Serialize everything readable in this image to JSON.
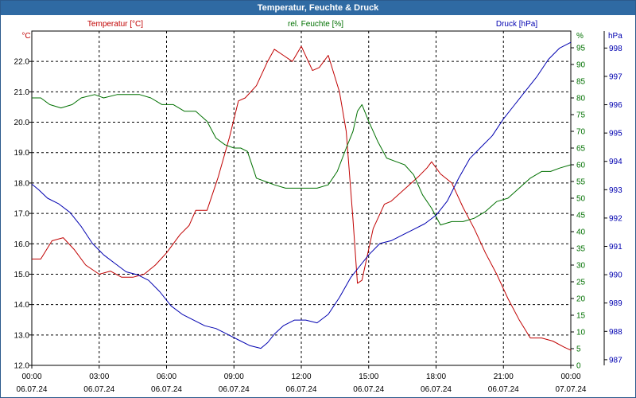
{
  "window": {
    "title": "Temperatur, Feuchte & Druck"
  },
  "chart_data": {
    "type": "line",
    "title": "Temperatur, Feuchte & Druck",
    "x_tick_times": [
      "00:00",
      "03:00",
      "06:00",
      "09:00",
      "12:00",
      "15:00",
      "18:00",
      "21:00",
      "00:00"
    ],
    "x_tick_dates": [
      "06.07.24",
      "06.07.24",
      "06.07.24",
      "06.07.24",
      "06.07.24",
      "06.07.24",
      "06.07.24",
      "06.07.24",
      "07.07.24"
    ],
    "x_hours_range": [
      0,
      24
    ],
    "axes": {
      "temp": {
        "unit": "°C",
        "ylim": [
          12.0,
          23.0
        ],
        "ticks": [
          "12.0",
          "13.0",
          "14.0",
          "15.0",
          "16.0",
          "17.0",
          "18.0",
          "19.0",
          "20.0",
          "21.0",
          "22.0"
        ]
      },
      "hum": {
        "unit": "%",
        "ylim": [
          0,
          100
        ],
        "ticks": [
          "0",
          "5",
          "10",
          "15",
          "20",
          "25",
          "30",
          "35",
          "40",
          "45",
          "50",
          "55",
          "60",
          "65",
          "70",
          "75",
          "80",
          "85",
          "90",
          "95"
        ]
      },
      "press": {
        "unit": "hPa",
        "ylim": [
          986.8,
          998.6
        ],
        "ticks": [
          "987",
          "988",
          "989",
          "990",
          "991",
          "992",
          "993",
          "994",
          "995",
          "996",
          "997",
          "998"
        ]
      }
    },
    "series": [
      {
        "name": "Temperatur [°C]",
        "axis": "temp",
        "color": "#c00000",
        "x": [
          0,
          0.4,
          0.9,
          1.4,
          1.9,
          2.4,
          3.0,
          3.5,
          4.0,
          4.5,
          5.0,
          5.5,
          6.0,
          6.6,
          7.0,
          7.3,
          7.8,
          8.3,
          8.8,
          9.2,
          9.5,
          10.0,
          10.5,
          10.8,
          11.2,
          11.6,
          12.0,
          12.5,
          12.8,
          13.2,
          13.7,
          14.0,
          14.3,
          14.5,
          14.7,
          15.2,
          15.7,
          16.0,
          16.6,
          17.2,
          17.6,
          17.8,
          18.2,
          18.7,
          19.2,
          19.7,
          20.2,
          20.7,
          21.2,
          21.7,
          22.2,
          22.7,
          23.2,
          23.7,
          24.0
        ],
        "y": [
          15.5,
          15.5,
          16.1,
          16.2,
          15.8,
          15.3,
          15.0,
          15.1,
          14.9,
          14.9,
          15.0,
          15.3,
          15.7,
          16.3,
          16.6,
          17.1,
          17.1,
          18.2,
          19.5,
          20.7,
          20.8,
          21.2,
          22.0,
          22.4,
          22.2,
          22.0,
          22.5,
          21.7,
          21.8,
          22.2,
          21.0,
          19.7,
          16.8,
          14.7,
          14.8,
          16.5,
          17.3,
          17.4,
          17.8,
          18.2,
          18.5,
          18.7,
          18.3,
          18.0,
          17.2,
          16.5,
          15.7,
          15.0,
          14.2,
          13.5,
          12.9,
          12.9,
          12.8,
          12.6,
          12.5
        ]
      },
      {
        "name": "rel. Feuchte [%]",
        "axis": "hum",
        "color": "#007000",
        "x": [
          0,
          0.4,
          0.8,
          1.3,
          1.8,
          2.2,
          2.8,
          3.2,
          3.8,
          4.2,
          4.8,
          5.3,
          5.8,
          6.3,
          6.8,
          7.3,
          7.8,
          8.2,
          8.6,
          9.0,
          9.3,
          9.6,
          10.0,
          10.4,
          10.8,
          11.3,
          11.8,
          12.2,
          12.7,
          13.2,
          13.6,
          14.0,
          14.3,
          14.5,
          14.7,
          15.0,
          15.4,
          15.8,
          16.2,
          16.6,
          17.0,
          17.4,
          17.8,
          18.2,
          18.7,
          19.2,
          19.7,
          20.2,
          20.7,
          21.2,
          21.7,
          22.2,
          22.7,
          23.1,
          23.5,
          24.0
        ],
        "y": [
          80,
          80,
          78,
          77,
          78,
          80,
          81,
          80,
          81,
          81,
          81,
          80,
          78,
          78,
          76,
          76,
          73,
          68,
          66,
          65,
          65,
          64,
          56,
          55,
          54,
          53,
          53,
          53,
          53,
          54,
          58,
          65,
          70,
          76,
          78,
          73,
          67,
          62,
          61,
          60,
          57,
          51,
          47,
          42,
          43,
          43,
          44,
          46,
          49,
          50,
          53,
          56,
          58,
          58,
          59,
          60
        ]
      },
      {
        "name": "Druck [hPa]",
        "axis": "press",
        "color": "#0000b0",
        "x": [
          0,
          0.3,
          0.7,
          1.2,
          1.7,
          2.2,
          2.7,
          3.2,
          3.7,
          4.2,
          4.7,
          5.2,
          5.7,
          6.2,
          6.7,
          7.2,
          7.7,
          8.2,
          8.7,
          9.2,
          9.7,
          10.2,
          10.5,
          10.8,
          11.2,
          11.7,
          12.2,
          12.7,
          13.2,
          13.7,
          14.2,
          14.5,
          15.0,
          15.5,
          16.0,
          16.5,
          17.0,
          17.5,
          18.0,
          18.5,
          19.0,
          19.5,
          20.0,
          20.5,
          21.0,
          21.5,
          22.0,
          22.5,
          23.0,
          23.5,
          24.0
        ],
        "y": [
          993.2,
          993.0,
          992.7,
          992.5,
          992.2,
          991.7,
          991.1,
          990.7,
          990.4,
          990.1,
          990.0,
          989.8,
          989.4,
          988.9,
          988.6,
          988.4,
          988.2,
          988.1,
          987.9,
          987.7,
          987.5,
          987.4,
          987.6,
          987.9,
          988.2,
          988.4,
          988.4,
          988.3,
          988.6,
          989.2,
          989.9,
          990.2,
          990.7,
          991.1,
          991.2,
          991.4,
          991.6,
          991.8,
          992.1,
          992.6,
          993.4,
          994.1,
          994.5,
          994.9,
          995.5,
          996.0,
          996.5,
          997.0,
          997.6,
          998.0,
          998.2
        ]
      }
    ],
    "legend": [
      "Temperatur [°C]",
      "rel. Feuchte [%]",
      "Druck [hPa]"
    ],
    "grid": true
  }
}
